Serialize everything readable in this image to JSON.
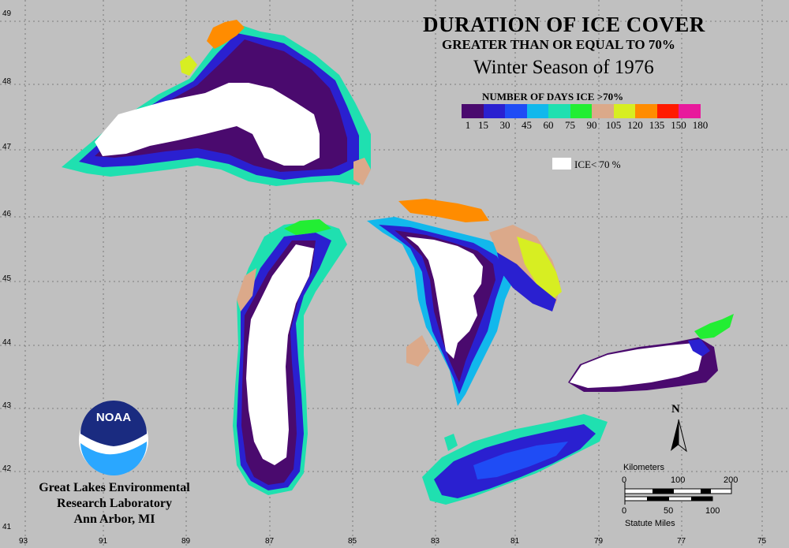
{
  "title": {
    "line1": "DURATION OF ICE COVER",
    "line2": "GREATER THAN OR EQUAL TO 70%",
    "line3": "Winter Season of 1976"
  },
  "legend": {
    "title": "NUMBER OF DAYS ICE >70%",
    "ticks": [
      "1",
      "15",
      "30",
      "45",
      "60",
      "75",
      "90",
      "105",
      "120",
      "135",
      "150",
      "180"
    ],
    "colors": [
      "#4a0a6e",
      "#2a20d0",
      "#1f4cf5",
      "#12b8ec",
      "#1fe0b0",
      "#22ee33",
      "#dba98a",
      "#d7ee22",
      "#ff8c00",
      "#ff1a00",
      "#e81a9c"
    ],
    "ice_label": "ICE< 70 %",
    "ice_color": "#ffffff"
  },
  "axes": {
    "lat_labels": [
      "49",
      "48",
      "47",
      "46",
      "45",
      "44",
      "43",
      "42",
      "41"
    ],
    "lon_labels": [
      "93",
      "91",
      "89",
      "87",
      "85",
      "83",
      "81",
      "79",
      "77",
      "75"
    ]
  },
  "organization": {
    "line1": "Great Lakes Environmental",
    "line2": "Research Laboratory",
    "line3": "Ann Arbor, MI",
    "logo_text": "NOAA"
  },
  "north_arrow": "N",
  "scale": {
    "km_label": "Kilometers",
    "km_ticks": [
      "0",
      "100",
      "200"
    ],
    "mi_label": "Statute Miles",
    "mi_ticks": [
      "0",
      "50",
      "100"
    ]
  },
  "background_color": "#c0c0c0"
}
